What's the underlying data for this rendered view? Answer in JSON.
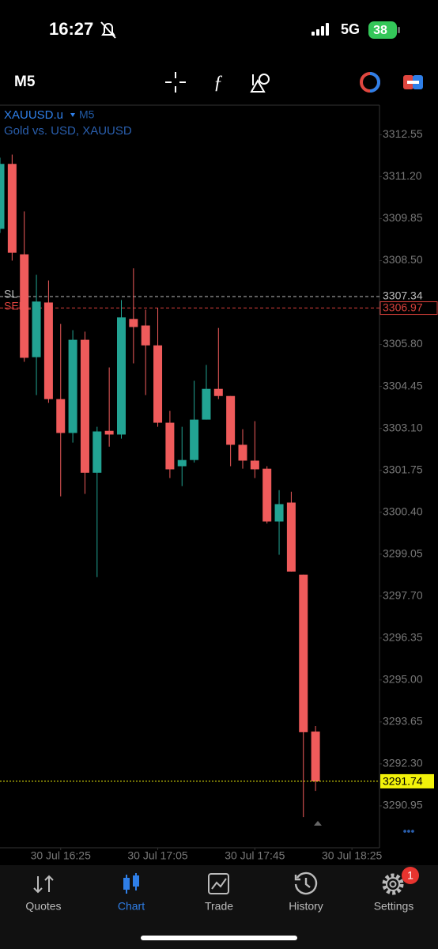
{
  "status_bar": {
    "time": "16:27",
    "network": "5G",
    "battery": "38"
  },
  "toolbar": {
    "timeframe": "M5"
  },
  "chart_data": {
    "type": "candlestick",
    "symbol": "XAUUSD.u",
    "timeframe": "M5",
    "subtitle": "Gold vs. USD, XAUUSD",
    "categories": [
      null,
      null,
      null,
      null,
      null,
      "30 Jul 16:25",
      null,
      null,
      null,
      null,
      null,
      null,
      null,
      "30 Jul 17:05",
      null,
      null,
      null,
      null,
      null,
      null,
      null,
      "30 Jul 17:45",
      null,
      null,
      null,
      null,
      null,
      null,
      null,
      "30 Jul 18:25"
    ],
    "open": [
      3309.52,
      3311.61,
      3308.7,
      3305.39,
      3307.15,
      3304.04,
      3302.95,
      3305.95,
      3301.67,
      3303.02,
      3302.9,
      3306.62,
      3306.41,
      3305.77,
      3303.28,
      3301.88,
      3302.08,
      3303.38,
      3304.37,
      3304.14,
      3302.57,
      3302.06,
      3301.8,
      3300.1,
      3300.71,
      3298.39,
      3293.34,
      null,
      null,
      null
    ],
    "high": [
      3311.81,
      3311.91,
      3310.08,
      3308.04,
      3307.86,
      3306.46,
      3306.26,
      3306.21,
      3303.15,
      3305.06,
      3307.23,
      3308.25,
      3306.92,
      3306.97,
      3303.66,
      3303.15,
      3304.63,
      3305.14,
      3306.33,
      3304.14,
      3303.07,
      3303.33,
      3301.88,
      3301.11,
      3301.06,
      3298.39,
      3293.52,
      null,
      null,
      null
    ],
    "low": [
      3309.39,
      3308.5,
      3305.24,
      3304.17,
      3303.92,
      3300.91,
      3302.64,
      3300.99,
      3298.31,
      3302.51,
      3302.77,
      3305.19,
      3304.17,
      3303.15,
      3301.5,
      3301.24,
      3302.0,
      3303.38,
      3304.04,
      3301.88,
      3301.8,
      3301.5,
      3300.04,
      3299.03,
      3298.49,
      3290.59,
      3291.43,
      null,
      null,
      null
    ],
    "close": [
      3311.61,
      3308.75,
      3305.37,
      3307.18,
      3304.04,
      3302.95,
      3305.95,
      3301.67,
      3303.0,
      3302.9,
      3306.67,
      3306.36,
      3305.77,
      3303.28,
      3301.78,
      3302.08,
      3303.38,
      3304.37,
      3304.14,
      3302.57,
      3302.06,
      3301.78,
      3300.1,
      3300.66,
      3298.49,
      3293.32,
      3291.74,
      null,
      null,
      null
    ],
    "up_color": "#22a393",
    "down_color": "#ef5b5b",
    "ylim": [
      3289.6,
      3313.5
    ],
    "yticks": [
      3312.55,
      {
        "value": 3311.2,
        "label": "3311.20"
      },
      3309.85,
      {
        "value": 3308.5,
        "label": "3308.50"
      },
      {
        "value": 3305.8,
        "label": "3305.80"
      },
      3304.45,
      {
        "value": 3303.1,
        "label": "3303.10"
      },
      3301.75,
      {
        "value": 3300.4,
        "label": "3300.40"
      },
      3299.05,
      {
        "value": 3297.7,
        "label": "3297.70"
      },
      3296.35,
      {
        "value": 3295,
        "label": "3295.00"
      },
      3293.65,
      {
        "value": 3292.3,
        "label": "3292.30"
      },
      3290.95
    ],
    "levels": [
      {
        "name": "SL",
        "value": 3307.34,
        "color": "#bbbbbb"
      },
      {
        "name": "SELL 4",
        "value": 3306.97,
        "color": "#d9413c"
      }
    ],
    "current_price": {
      "value": 3291.74,
      "color": "#f2f20a"
    }
  },
  "tabs": [
    {
      "label": "Quotes"
    },
    {
      "label": "Chart"
    },
    {
      "label": "Trade"
    },
    {
      "label": "History"
    },
    {
      "label": "Settings",
      "badge": "1"
    }
  ]
}
